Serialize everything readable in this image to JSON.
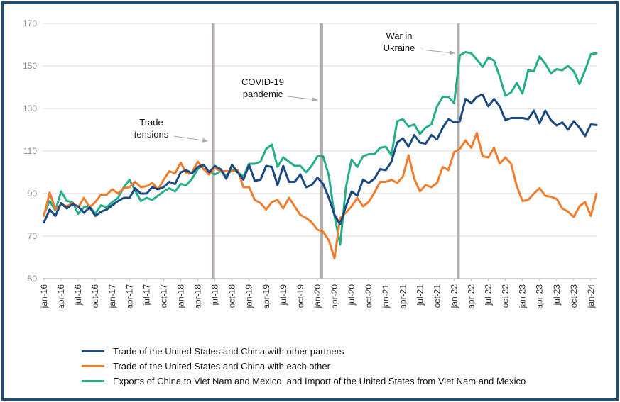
{
  "chart_data": {
    "type": "line",
    "title": "",
    "xlabel": "",
    "ylabel": "",
    "ylim": [
      50,
      170
    ],
    "yticks": [
      50,
      70,
      90,
      110,
      130,
      150,
      170
    ],
    "grid": true,
    "legend_position": "bottom",
    "x_start": "jan-16",
    "x_ticks": [
      "jan-16",
      "apr-16",
      "jul-16",
      "oct-16",
      "jan-17",
      "apr-17",
      "jul-17",
      "oct-17",
      "jan-18",
      "apr-18",
      "jul-18",
      "oct-18",
      "jan-19",
      "apr-19",
      "jul-19",
      "oct-19",
      "jan-20",
      "apr-20",
      "jul-20",
      "oct-20",
      "jan-21",
      "apr-21",
      "jul-21",
      "oct-21",
      "jan-22",
      "apr-22",
      "jul-22",
      "oct-22",
      "jan-23",
      "apr-23",
      "jul-23",
      "oct-23",
      "jan-24"
    ],
    "events": [
      {
        "label_lines": [
          "Trade",
          "tensions"
        ],
        "month_index": 30
      },
      {
        "label_lines": [
          "COVID-19",
          "pandemic"
        ],
        "month_index": 49
      },
      {
        "label_lines": [
          "War in",
          "Ukraine"
        ],
        "month_index": 73
      }
    ],
    "series": [
      {
        "name": "Trade of the United States and China with other partners",
        "color": "#1b4a82",
        "values": [
          76.5,
          82.5,
          79.5,
          85.5,
          83,
          85,
          84,
          81,
          83.5,
          79.5,
          81.5,
          82.5,
          84.5,
          86.5,
          88,
          88,
          92.5,
          90,
          90,
          93,
          92,
          93,
          95.5,
          94.5,
          100,
          101,
          99.5,
          102.5,
          103.5,
          100,
          103,
          101.5,
          97,
          103.5,
          100,
          96.5,
          103.5,
          96,
          96.5,
          103,
          102.5,
          94,
          103,
          95.5,
          95.5,
          99,
          93,
          94,
          97.5,
          94.5,
          88,
          80,
          75.5,
          84,
          91,
          89,
          96.5,
          95,
          97,
          101.5,
          101,
          105,
          114,
          116,
          112,
          117.5,
          114,
          113.5,
          117.5,
          115.5,
          121,
          125,
          123.5,
          124,
          134.5,
          132.5,
          135.5,
          136.5,
          131,
          134.5,
          131,
          124.5,
          125.5,
          125.5,
          125.5,
          125,
          129,
          123,
          129,
          124.5,
          122,
          123.5,
          120,
          124,
          121,
          117,
          122.5,
          122.2
        ]
      },
      {
        "name": "Trade of the United States and China with each other",
        "color": "#ef7d2d",
        "values": [
          79.5,
          90.5,
          82.5,
          85,
          84,
          85.5,
          83.5,
          88,
          83.5,
          86,
          89.5,
          89.5,
          92,
          90,
          92.5,
          93,
          95.5,
          93,
          93.5,
          95,
          92,
          96.5,
          100.5,
          99.5,
          104.5,
          99.5,
          100,
          105,
          101.5,
          99,
          102,
          100.5,
          100.5,
          100.5,
          101,
          93,
          93,
          87,
          85.5,
          82.5,
          86,
          87,
          83,
          88,
          84,
          80,
          78.5,
          76.5,
          73,
          72,
          68,
          59.5,
          78.5,
          81,
          84,
          88,
          84,
          86,
          90.5,
          95.5,
          95.5,
          96.5,
          95,
          98,
          108,
          97,
          91,
          94,
          93,
          95,
          102.5,
          101,
          109.5,
          111,
          115,
          111.5,
          118.5,
          107.5,
          107,
          111.5,
          104,
          107,
          104,
          93.5,
          86.5,
          87,
          90,
          92.5,
          89,
          88.5,
          87.5,
          83,
          81.5,
          79,
          84,
          86,
          79.5,
          90
        ]
      },
      {
        "name": "Exports of China to Viet Nam and Mexico, and Import of the United States from Viet Nam and Mexico",
        "color": "#26ad8a",
        "values": [
          80.5,
          86.5,
          82,
          91,
          86.5,
          86,
          80.5,
          83.5,
          84,
          80.5,
          84.5,
          83.5,
          86,
          88,
          93,
          96.5,
          91.5,
          86.5,
          88,
          87,
          89,
          91,
          92.5,
          91,
          94.5,
          94,
          97,
          101.5,
          103.5,
          100,
          99,
          100.5,
          98.5,
          101,
          100,
          98,
          104,
          104,
          105,
          111,
          113,
          102.5,
          107,
          105,
          103,
          103,
          100,
          103,
          107.5,
          107.5,
          98.5,
          79.5,
          66,
          93,
          106,
          102.5,
          107.5,
          108.5,
          108.5,
          111.5,
          112,
          108,
          124,
          125,
          121.5,
          122.5,
          118,
          121,
          122.5,
          131,
          135.5,
          135.5,
          132.5,
          155,
          156.5,
          156,
          153,
          149.5,
          154,
          152.5,
          145,
          136,
          137.5,
          142,
          137,
          148,
          147.5,
          154.5,
          151,
          146.5,
          148.5,
          148,
          150,
          147.5,
          141.5,
          148,
          155.5,
          156
        ]
      }
    ]
  },
  "legend": {
    "items": [
      {
        "label": "Trade of the United States and China with other partners",
        "color": "#1b4a82"
      },
      {
        "label": "Trade of the United States and China with each other",
        "color": "#ef7d2d"
      },
      {
        "label": "Exports of China to Viet Nam and Mexico, and Import of the United States from Viet Nam and Mexico",
        "color": "#26ad8a"
      }
    ]
  },
  "colors": {
    "border": "#1a4d80",
    "grid": "#d9d9d9",
    "event_line": "#b3aeac",
    "annotation_arrow": "#a6a6a6"
  }
}
